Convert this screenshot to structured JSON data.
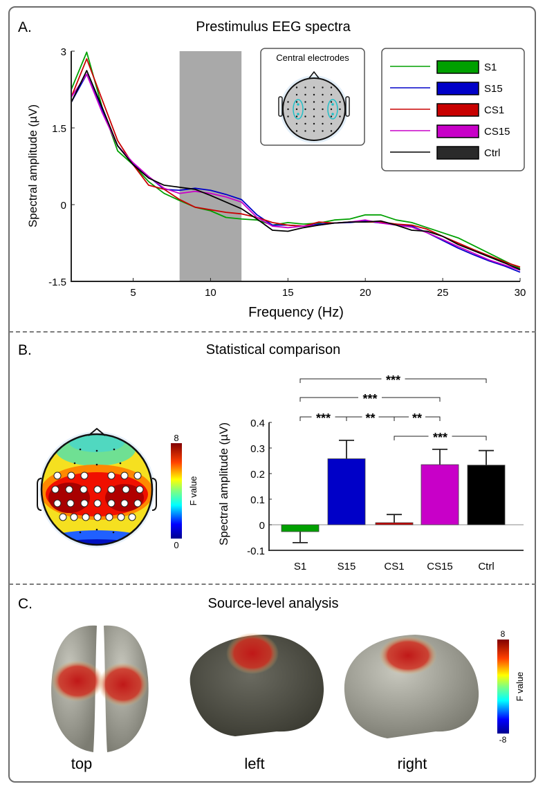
{
  "panels": {
    "a": {
      "letter": "A.",
      "title": "Prestimulus EEG spectra"
    },
    "b": {
      "letter": "B.",
      "title": "Statistical comparison"
    },
    "c": {
      "letter": "C.",
      "title": "Source-level analysis"
    }
  },
  "inset": {
    "title": "Central electrodes"
  },
  "topo_b": {
    "colorbar_max": "8",
    "colorbar_min": "0",
    "colorbar_label": "F value"
  },
  "source": {
    "views": [
      "top",
      "left",
      "right"
    ],
    "colorbar_max": "8",
    "colorbar_min": "-8",
    "colorbar_label": "F value"
  },
  "colors": {
    "S1": "#00a000",
    "S15": "#0000c8",
    "CS1": "#c80000",
    "CS15": "#c800c8",
    "Ctrl": "#000000",
    "band": "#a9a9a9"
  },
  "chart_data": [
    {
      "type": "line",
      "title": "Prestimulus EEG spectra",
      "xlabel": "Frequency (Hz)",
      "ylabel": "Spectral amplitude (µV)",
      "xlim": [
        1,
        30
      ],
      "ylim": [
        -1.5,
        3
      ],
      "xticks": [
        5,
        10,
        15,
        20,
        25,
        30
      ],
      "yticks": [
        -1.5,
        0,
        1.5,
        3
      ],
      "ytick_labels": [
        "-1.5",
        "0",
        "1.5",
        "3"
      ],
      "shaded_band": {
        "from": 8,
        "to": 12
      },
      "legend": {
        "placement": "top-right",
        "entries": [
          "S1",
          "S15",
          "CS1",
          "CS15",
          "Ctrl"
        ]
      },
      "x": [
        1,
        2,
        3,
        4,
        5,
        6,
        7,
        8,
        9,
        10,
        11,
        12,
        13,
        14,
        15,
        16,
        17,
        18,
        19,
        20,
        21,
        22,
        23,
        24,
        25,
        26,
        27,
        28,
        29,
        30
      ],
      "series": [
        {
          "name": "S1",
          "values": [
            2.25,
            2.98,
            1.9,
            1.05,
            0.78,
            0.45,
            0.22,
            0.08,
            -0.05,
            -0.12,
            -0.25,
            -0.28,
            -0.3,
            -0.4,
            -0.35,
            -0.38,
            -0.36,
            -0.3,
            -0.28,
            -0.2,
            -0.2,
            -0.3,
            -0.35,
            -0.45,
            -0.55,
            -0.65,
            -0.8,
            -0.95,
            -1.1,
            -1.25
          ]
        },
        {
          "name": "S15",
          "values": [
            2.0,
            2.55,
            1.85,
            1.15,
            0.8,
            0.55,
            0.3,
            0.28,
            0.32,
            0.28,
            0.2,
            0.1,
            -0.2,
            -0.4,
            -0.4,
            -0.42,
            -0.38,
            -0.36,
            -0.35,
            -0.32,
            -0.36,
            -0.38,
            -0.42,
            -0.55,
            -0.7,
            -0.85,
            -0.98,
            -1.1,
            -1.2,
            -1.32
          ]
        },
        {
          "name": "CS1",
          "values": [
            2.1,
            2.85,
            2.05,
            1.25,
            0.78,
            0.38,
            0.3,
            0.1,
            -0.05,
            -0.1,
            -0.15,
            -0.18,
            -0.25,
            -0.35,
            -0.4,
            -0.42,
            -0.34,
            -0.36,
            -0.34,
            -0.34,
            -0.34,
            -0.38,
            -0.4,
            -0.48,
            -0.62,
            -0.75,
            -0.88,
            -1.0,
            -1.12,
            -1.22
          ]
        },
        {
          "name": "CS15",
          "values": [
            2.1,
            2.55,
            1.8,
            1.15,
            0.82,
            0.55,
            0.32,
            0.22,
            0.26,
            0.22,
            0.15,
            0.05,
            -0.25,
            -0.42,
            -0.45,
            -0.42,
            -0.4,
            -0.36,
            -0.34,
            -0.3,
            -0.36,
            -0.4,
            -0.44,
            -0.55,
            -0.68,
            -0.82,
            -0.95,
            -1.08,
            -1.18,
            -1.28
          ]
        },
        {
          "name": "Ctrl",
          "values": [
            2.0,
            2.62,
            1.9,
            1.15,
            0.78,
            0.52,
            0.38,
            0.34,
            0.3,
            0.18,
            0.05,
            -0.08,
            -0.28,
            -0.5,
            -0.52,
            -0.45,
            -0.4,
            -0.36,
            -0.34,
            -0.34,
            -0.32,
            -0.4,
            -0.5,
            -0.52,
            -0.62,
            -0.78,
            -0.9,
            -1.02,
            -1.14,
            -1.27
          ]
        }
      ]
    },
    {
      "type": "bar",
      "title": "Statistical comparison",
      "xlabel": "",
      "ylabel": "Spectral amplitude  (µV)",
      "categories": [
        "S1",
        "S15",
        "CS1",
        "CS15",
        "Ctrl"
      ],
      "values": [
        -0.027,
        0.258,
        0.008,
        0.235,
        0.233
      ],
      "error_upper": [
        -0.07,
        0.33,
        0.04,
        0.295,
        0.29
      ],
      "ylim": [
        -0.1,
        0.4
      ],
      "yticks": [
        -0.1,
        0,
        0.1,
        0.2,
        0.3,
        0.4
      ],
      "ytick_labels": [
        "-0.1",
        "0",
        "0.1",
        "0.2",
        "0.3",
        "0.4"
      ],
      "significance": [
        {
          "from": "S1",
          "to": "Ctrl",
          "label": "***",
          "level": 4
        },
        {
          "from": "S1",
          "to": "CS15",
          "label": "***",
          "level": 3
        },
        {
          "from": "S1",
          "to": "S15",
          "label": "***",
          "level": 2
        },
        {
          "from": "S15",
          "to": "CS1",
          "label": "**",
          "level": 2
        },
        {
          "from": "CS1",
          "to": "CS15",
          "label": "**",
          "level": 2
        },
        {
          "from": "CS1",
          "to": "Ctrl",
          "label": "***",
          "level": 1
        }
      ]
    }
  ]
}
